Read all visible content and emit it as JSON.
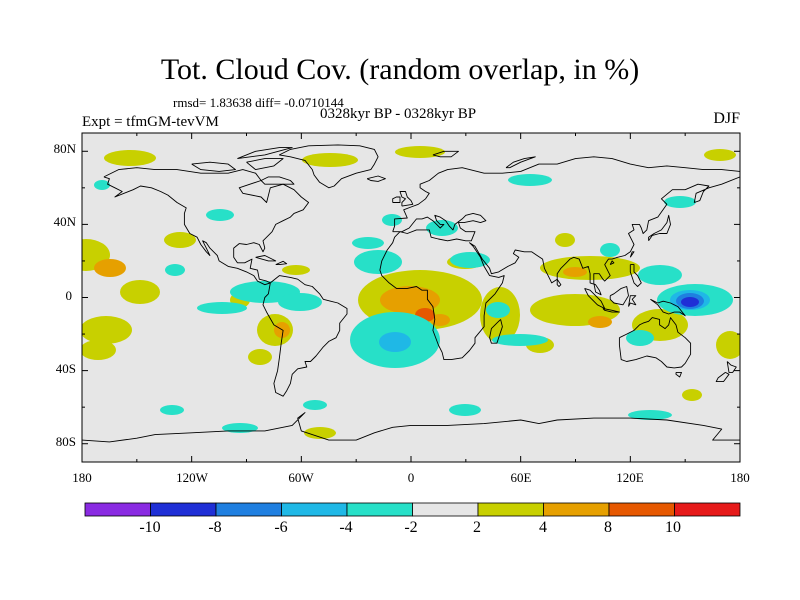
{
  "title": "Tot. Cloud Cov. (random overlap, in %)",
  "stats_line": "rmsd= 1.83638 diff= -0.0710144",
  "period": "0328kyr BP - 0328kyr BP",
  "experiment": "Expt = tfmGM-tevVM",
  "season": "DJF",
  "map": {
    "projection": "cylindrical equidistant",
    "lon_range": [
      -180,
      180
    ],
    "lat_range": [
      -90,
      90
    ],
    "background_color": "#e6e6e6",
    "coastline_color": "#000000",
    "lat_tick_labels": [
      "80N",
      "40N",
      "0",
      "40S",
      "80S"
    ],
    "lon_tick_labels": [
      "180",
      "120W",
      "60W",
      "0",
      "60E",
      "120E",
      "180"
    ]
  },
  "colorbar": {
    "bins": [
      {
        "range": "< -10",
        "color": "#8a2be2"
      },
      {
        "range": "-10 to -8",
        "color": "#1f2fd6"
      },
      {
        "range": "-8 to -6",
        "color": "#1f7fe0"
      },
      {
        "range": "-6 to -4",
        "color": "#1fb8e6"
      },
      {
        "range": "-4 to -2",
        "color": "#27e0c8"
      },
      {
        "range": "-2 to 2",
        "color": "#e6e6e6"
      },
      {
        "range": "2 to 4",
        "color": "#c8d000"
      },
      {
        "range": "4 to 8",
        "color": "#e6a000"
      },
      {
        "range": "8 to 10",
        "color": "#e65800"
      },
      {
        "range": "> 10",
        "color": "#e61a1a"
      }
    ],
    "labels": [
      "-10",
      "-8",
      "-6",
      "-4",
      "-2",
      "2",
      "4",
      "8",
      "10"
    ]
  }
}
